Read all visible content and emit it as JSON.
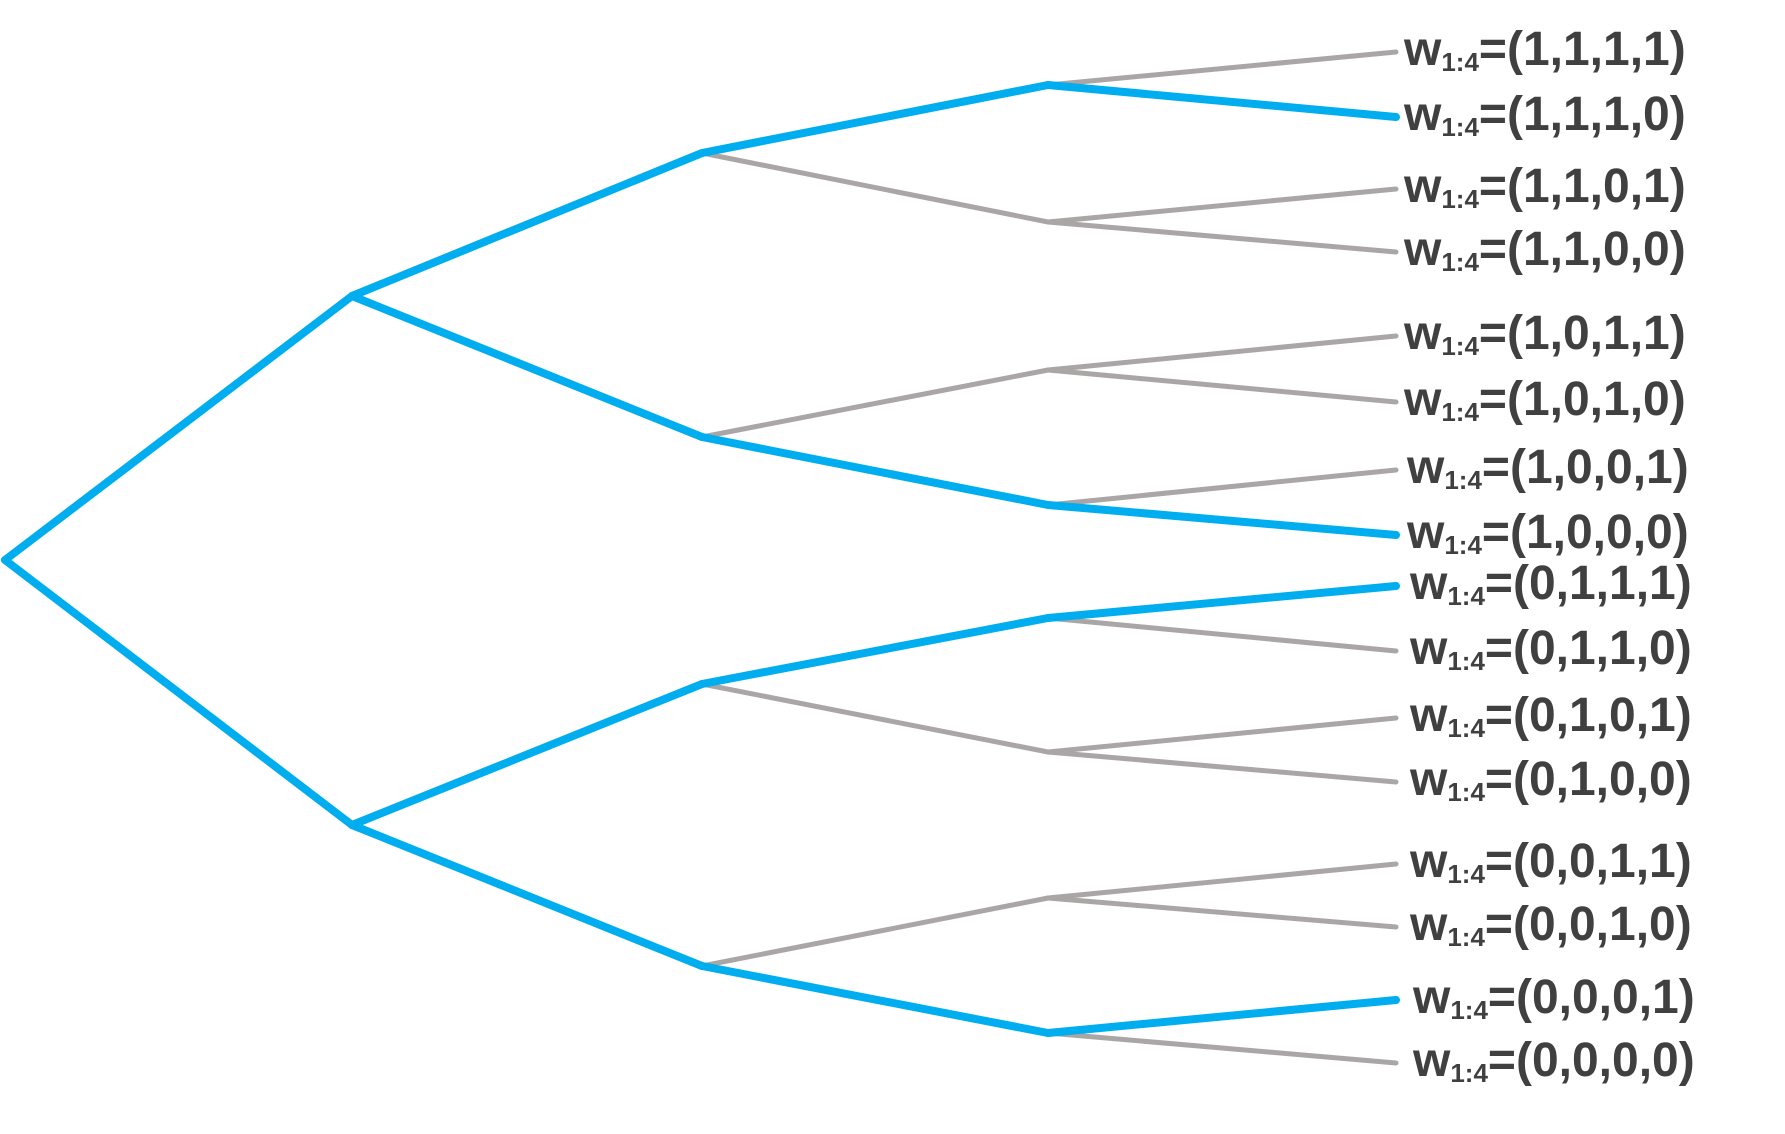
{
  "colors": {
    "selected": "#00aeef",
    "unselected": "#aaa6a6",
    "text": "#404040"
  },
  "label_prefix": "w",
  "label_subscript": "1:4",
  "leaves": [
    {
      "label": "=(1,1,1,1)",
      "selected": false
    },
    {
      "label": "=(1,1,1,0)",
      "selected": true
    },
    {
      "label": "=(1,1,0,1)",
      "selected": false
    },
    {
      "label": "=(1,1,0,0)",
      "selected": false
    },
    {
      "label": "=(1,0,1,1)",
      "selected": false
    },
    {
      "label": "=(1,0,1,0)",
      "selected": false
    },
    {
      "label": "=(1,0,0,1)",
      "selected": false
    },
    {
      "label": "=(1,0,0,0)",
      "selected": true
    },
    {
      "label": "=(0,1,1,1)",
      "selected": true
    },
    {
      "label": "=(0,1,1,0)",
      "selected": false
    },
    {
      "label": "=(0,1,0,1)",
      "selected": false
    },
    {
      "label": "=(0,1,0,0)",
      "selected": false
    },
    {
      "label": "=(0,0,1,1)",
      "selected": false
    },
    {
      "label": "=(0,0,1,0)",
      "selected": false
    },
    {
      "label": "=(0,0,0,1)",
      "selected": true
    },
    {
      "label": "=(0,0,0,0)",
      "selected": false
    }
  ],
  "selected_edges": [
    "root-1",
    "root-0",
    "1-11",
    "1-10",
    "0-01",
    "0-00",
    "11-111",
    "10-100",
    "01-011",
    "00-000",
    "111-1110",
    "100-1000",
    "011-0111",
    "000-0001"
  ]
}
